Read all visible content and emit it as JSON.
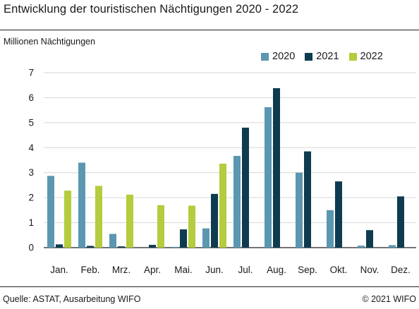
{
  "chart_data": {
    "type": "bar",
    "title": "Entwicklung der touristischen Nächtigungen 2020 - 2022",
    "ylabel": "Millionen Nächtigungen",
    "ylim": [
      0,
      7
    ],
    "yticks": [
      0,
      1,
      2,
      3,
      4,
      5,
      6,
      7
    ],
    "categories": [
      "Jan.",
      "Feb.",
      "Mrz.",
      "Apr.",
      "Mai.",
      "Jun.",
      "Jul.",
      "Aug.",
      "Sep.",
      "Okt.",
      "Nov.",
      "Dez."
    ],
    "legend_position": "top-right",
    "grid": "horizontal",
    "series": [
      {
        "name": "2020",
        "color": "#5b97b1",
        "values": [
          2.87,
          3.4,
          0.55,
          0.0,
          0.03,
          0.77,
          3.67,
          5.62,
          3.0,
          1.5,
          0.08,
          0.1
        ]
      },
      {
        "name": "2021",
        "color": "#0e3b4f",
        "values": [
          0.13,
          0.07,
          0.05,
          0.11,
          0.73,
          2.15,
          4.8,
          6.38,
          3.85,
          2.65,
          0.7,
          2.05
        ]
      },
      {
        "name": "2022",
        "color": "#b4cc3d",
        "values": [
          2.28,
          2.47,
          2.12,
          1.7,
          1.68,
          3.36,
          null,
          null,
          null,
          null,
          null,
          null
        ]
      }
    ]
  },
  "footer": {
    "source": "Quelle: ASTAT, Ausarbeitung WIFO",
    "copyright": "© 2021 WIFO"
  }
}
